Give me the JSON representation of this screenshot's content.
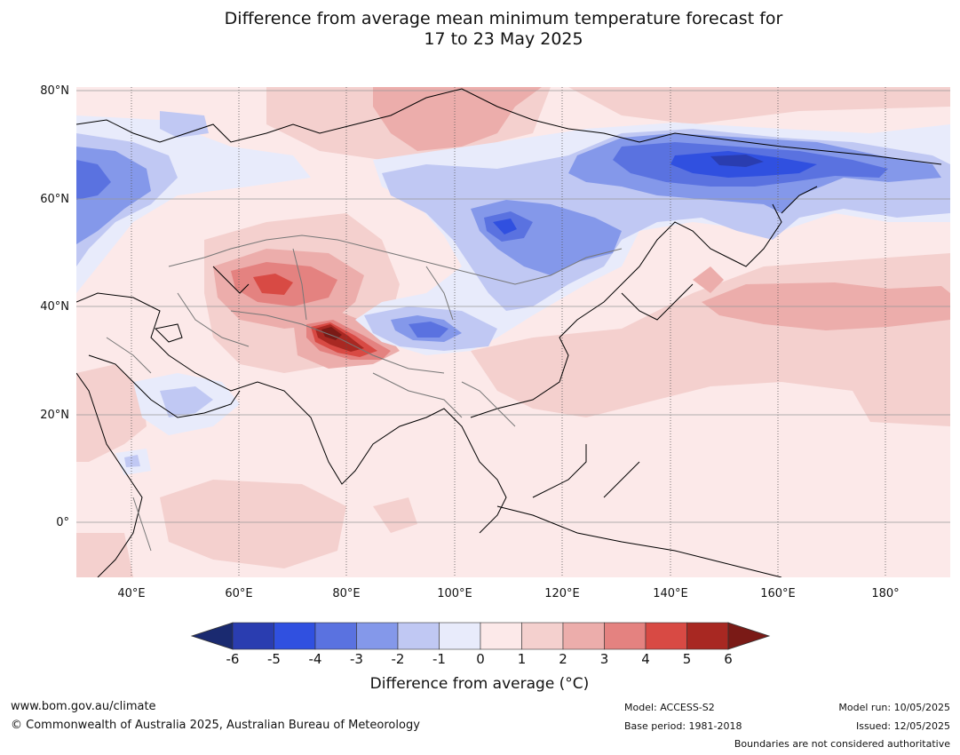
{
  "title": {
    "line1": "Difference from average mean minimum temperature forecast for",
    "line2": "17 to 23 May 2025"
  },
  "map": {
    "region": "Asia",
    "lon_range_deg": [
      30,
      192
    ],
    "lat_range_deg": [
      -10,
      81
    ],
    "lat_labels": [
      "80°N",
      "60°N",
      "40°N",
      "20°N",
      "0°"
    ],
    "lon_labels": [
      "40°E",
      "60°E",
      "80°E",
      "100°E",
      "120°E",
      "140°E",
      "160°E",
      "180°"
    ]
  },
  "colorbar": {
    "title": "Difference from average (°C)",
    "ticks": [
      "-6",
      "-5",
      "-4",
      "-3",
      "-2",
      "-1",
      "0",
      "1",
      "2",
      "3",
      "4",
      "5",
      "6"
    ],
    "colors": [
      "#1a2a70",
      "#2a3db0",
      "#3050e0",
      "#5a72e0",
      "#8498ea",
      "#c0c8f3",
      "#e8ebfb",
      "#fce9e9",
      "#f4d0ce",
      "#ecadab",
      "#e48280",
      "#d84a44",
      "#a82822",
      "#7a1a16"
    ]
  },
  "footer": {
    "website": "www.bom.gov.au/climate",
    "copyright": "© Commonwealth of Australia 2025, Australian Bureau of Meteorology",
    "model": "Model: ACCESS-S2",
    "base_period": "Base period: 1981-2018",
    "model_run": "Model run: 10/05/2025",
    "issued": "Issued: 12/05/2025",
    "disclaimer": "Boundaries are not considered authoritative"
  }
}
